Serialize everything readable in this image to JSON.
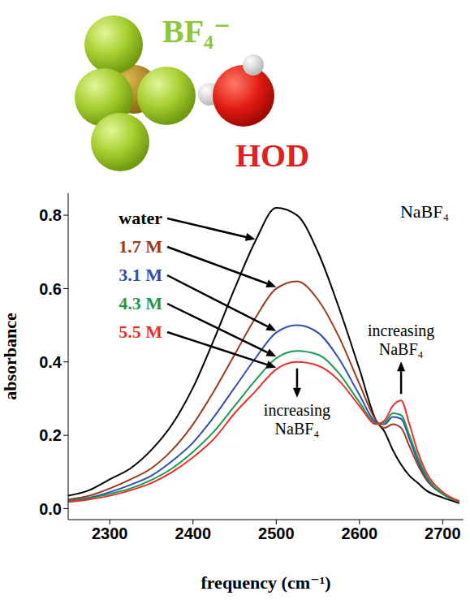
{
  "illustration": {
    "anion": "BF₄⁻",
    "molecule": "HOD"
  },
  "chart_data": {
    "type": "line",
    "title": "NaBF₄",
    "x_label": "frequency (cm⁻¹)",
    "y_label": "absorbance",
    "annotations": [
      "increasing NaBF₄",
      "increasing NaBF₄"
    ],
    "x": [
      2250,
      2275,
      2300,
      2325,
      2350,
      2375,
      2400,
      2425,
      2450,
      2475,
      2500,
      2525,
      2550,
      2575,
      2600,
      2620,
      2630,
      2640,
      2650,
      2660,
      2670,
      2680,
      2700,
      2720
    ],
    "series": [
      {
        "name": "water",
        "color": "#000000",
        "values": [
          0.035,
          0.05,
          0.08,
          0.11,
          0.16,
          0.23,
          0.33,
          0.46,
          0.6,
          0.73,
          0.82,
          0.8,
          0.7,
          0.55,
          0.38,
          0.24,
          0.21,
          0.16,
          0.12,
          0.09,
          0.07,
          0.05,
          0.03,
          0.015
        ]
      },
      {
        "name": "1.7 M",
        "color": "#9a3a1e",
        "values": [
          0.025,
          0.035,
          0.055,
          0.08,
          0.11,
          0.16,
          0.23,
          0.32,
          0.42,
          0.52,
          0.6,
          0.62,
          0.57,
          0.47,
          0.34,
          0.24,
          0.22,
          0.23,
          0.22,
          0.17,
          0.12,
          0.08,
          0.04,
          0.02
        ]
      },
      {
        "name": "3.1 M",
        "color": "#2f4fb0",
        "values": [
          0.022,
          0.03,
          0.045,
          0.065,
          0.09,
          0.13,
          0.18,
          0.25,
          0.33,
          0.41,
          0.48,
          0.5,
          0.48,
          0.41,
          0.31,
          0.235,
          0.23,
          0.25,
          0.245,
          0.19,
          0.13,
          0.085,
          0.04,
          0.02
        ]
      },
      {
        "name": "4.3 M",
        "color": "#1a9a50",
        "values": [
          0.02,
          0.028,
          0.04,
          0.055,
          0.078,
          0.11,
          0.155,
          0.21,
          0.28,
          0.35,
          0.41,
          0.43,
          0.42,
          0.37,
          0.29,
          0.232,
          0.235,
          0.26,
          0.255,
          0.2,
          0.14,
          0.09,
          0.04,
          0.02
        ]
      },
      {
        "name": "5.5 M",
        "color": "#e8302a",
        "values": [
          0.018,
          0.025,
          0.035,
          0.05,
          0.07,
          0.1,
          0.14,
          0.19,
          0.26,
          0.32,
          0.38,
          0.4,
          0.39,
          0.35,
          0.28,
          0.23,
          0.24,
          0.28,
          0.295,
          0.23,
          0.155,
          0.1,
          0.045,
          0.02
        ]
      }
    ],
    "xlim": [
      2250,
      2725
    ],
    "ylim": [
      -0.03,
      0.86
    ],
    "xticks": [
      2300,
      2400,
      2500,
      2600,
      2700
    ],
    "yticks": [
      {
        "value": 0,
        "label": "0.0"
      },
      0.2,
      0.4,
      0.6,
      0.8
    ],
    "grid": false
  }
}
